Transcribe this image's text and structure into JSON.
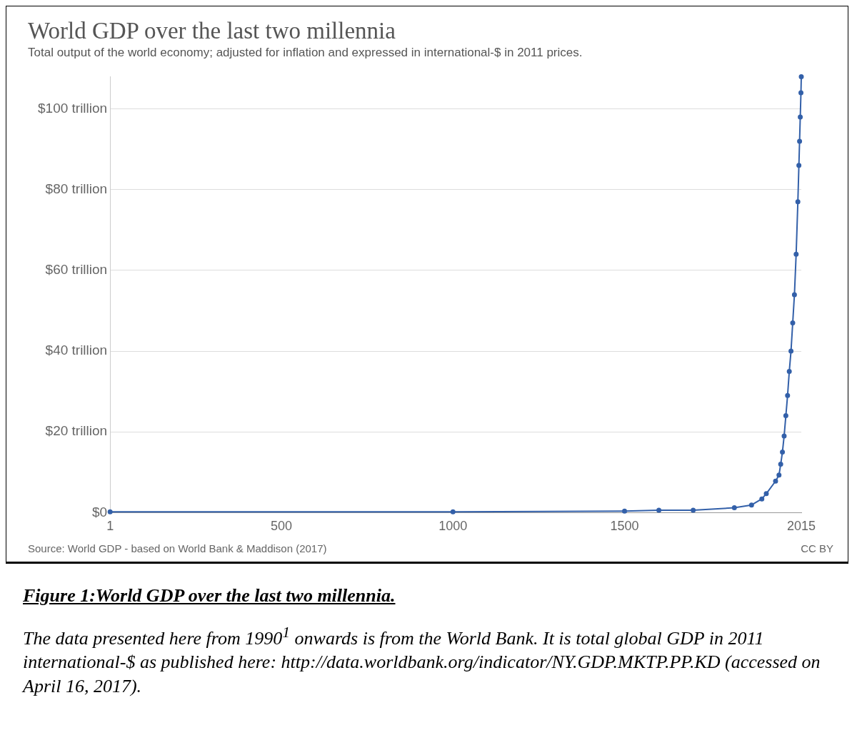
{
  "chart_data": {
    "type": "line",
    "title": "World GDP over the last two millennia",
    "subtitle": "Total output of the world economy; adjusted for inflation and expressed in international-$ in 2011 prices.",
    "x": [
      1,
      1000,
      1500,
      1600,
      1700,
      1820,
      1870,
      1900,
      1913,
      1940,
      1950,
      1955,
      1960,
      1965,
      1970,
      1975,
      1980,
      1985,
      1990,
      1995,
      2000,
      2005,
      2008,
      2010,
      2012,
      2014,
      2015
    ],
    "series": [
      {
        "color": "#3360a9",
        "values": [
          0.2,
          0.2,
          0.4,
          0.6,
          0.6,
          1.2,
          1.9,
          3.4,
          4.7,
          7.8,
          9.3,
          12,
          15,
          19,
          24,
          29,
          35,
          40,
          47,
          54,
          64,
          77,
          86,
          92,
          98,
          104,
          108
        ]
      }
    ],
    "xlim": [
      1,
      2015
    ],
    "xticks": [
      1,
      500,
      1000,
      1500,
      2015
    ],
    "ylim": [
      0,
      108
    ],
    "yticks": [
      {
        "value": 0,
        "label": "$0"
      },
      {
        "value": 20,
        "label": "$20 trillion"
      },
      {
        "value": 40,
        "label": "$40 trillion"
      },
      {
        "value": 60,
        "label": "$60 trillion"
      },
      {
        "value": 80,
        "label": "$80 trillion"
      },
      {
        "value": 100,
        "label": "$100 trillion"
      }
    ],
    "grid": "y",
    "marker": "circle",
    "line_style": "solid",
    "legend": false,
    "annotations": [
      "Source: World GDP - based on World Bank & Maddison (2017)",
      "CC BY",
      "Figure 1:World GDP over the last two millennia.",
      "The data presented here from 1990$^{1}$ onwards is from the World Bank. It is total global GDP in 2011 international-$ as published here: http://data.worldbank.org/indicator/NY.GDP.MKTP.PP.KD (accessed on April 16, 2017)."
    ]
  }
}
